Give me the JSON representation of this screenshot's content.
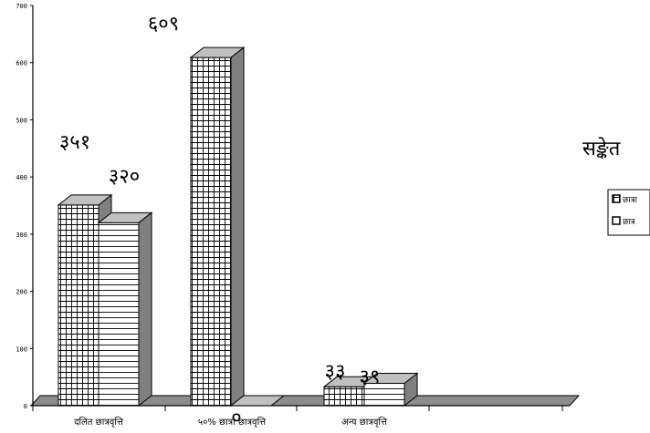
{
  "chart_data": {
    "type": "bar",
    "categories": [
      "दलित छात्रवृत्ति",
      "५०% छात्रा छात्रवृत्ति",
      "अन्य छात्रवृत्ति"
    ],
    "series": [
      {
        "name": "छात्रा",
        "values": [
          351,
          609,
          33
        ],
        "value_labels": [
          "३५१",
          "६०९",
          "३३"
        ],
        "fill": "grid"
      },
      {
        "name": "छात्र",
        "values": [
          320,
          0,
          39
        ],
        "value_labels": [
          "३२०",
          "०",
          "३९"
        ],
        "fill": "horizontal-lines"
      }
    ],
    "title": "",
    "xlabel": "",
    "ylabel": "",
    "ylim": [
      0,
      700
    ],
    "yticks": [
      0,
      100,
      200,
      300,
      400,
      500,
      600,
      700
    ],
    "ytick_labels": [
      "0",
      "100",
      "200",
      "300",
      "400",
      "500",
      "600",
      "700"
    ],
    "grid": false,
    "legend": {
      "title": "सङ्केत",
      "position": "right"
    },
    "colors": {
      "face": "#ffffff",
      "side": "#808080",
      "top": "#c0c0c0",
      "floor": "#8c8c8c",
      "line": "#000000"
    }
  }
}
